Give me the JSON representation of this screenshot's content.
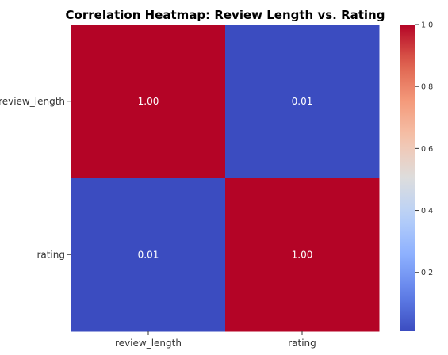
{
  "chart_data": {
    "type": "heatmap",
    "title": "Correlation Heatmap: Review Length vs. Rating",
    "row_labels": [
      "review_length",
      "rating"
    ],
    "col_labels": [
      "review_length",
      "rating"
    ],
    "values": [
      [
        1.0,
        0.01
      ],
      [
        0.01,
        1.0
      ]
    ],
    "cell_labels": [
      [
        "1.00",
        "0.01"
      ],
      [
        "0.01",
        "1.00"
      ]
    ],
    "colormap": "coolwarm",
    "vmin": 0.01,
    "vmax": 1.0,
    "colorbar": {
      "ticks": [
        0.2,
        0.4,
        0.6,
        0.8,
        1.0
      ],
      "tick_labels": [
        "0.2",
        "0.4",
        "0.6",
        "0.8",
        "1.0"
      ]
    },
    "colors": {
      "low": "#3b4cc0",
      "mid": "#dddddd",
      "high": "#b40426"
    }
  }
}
